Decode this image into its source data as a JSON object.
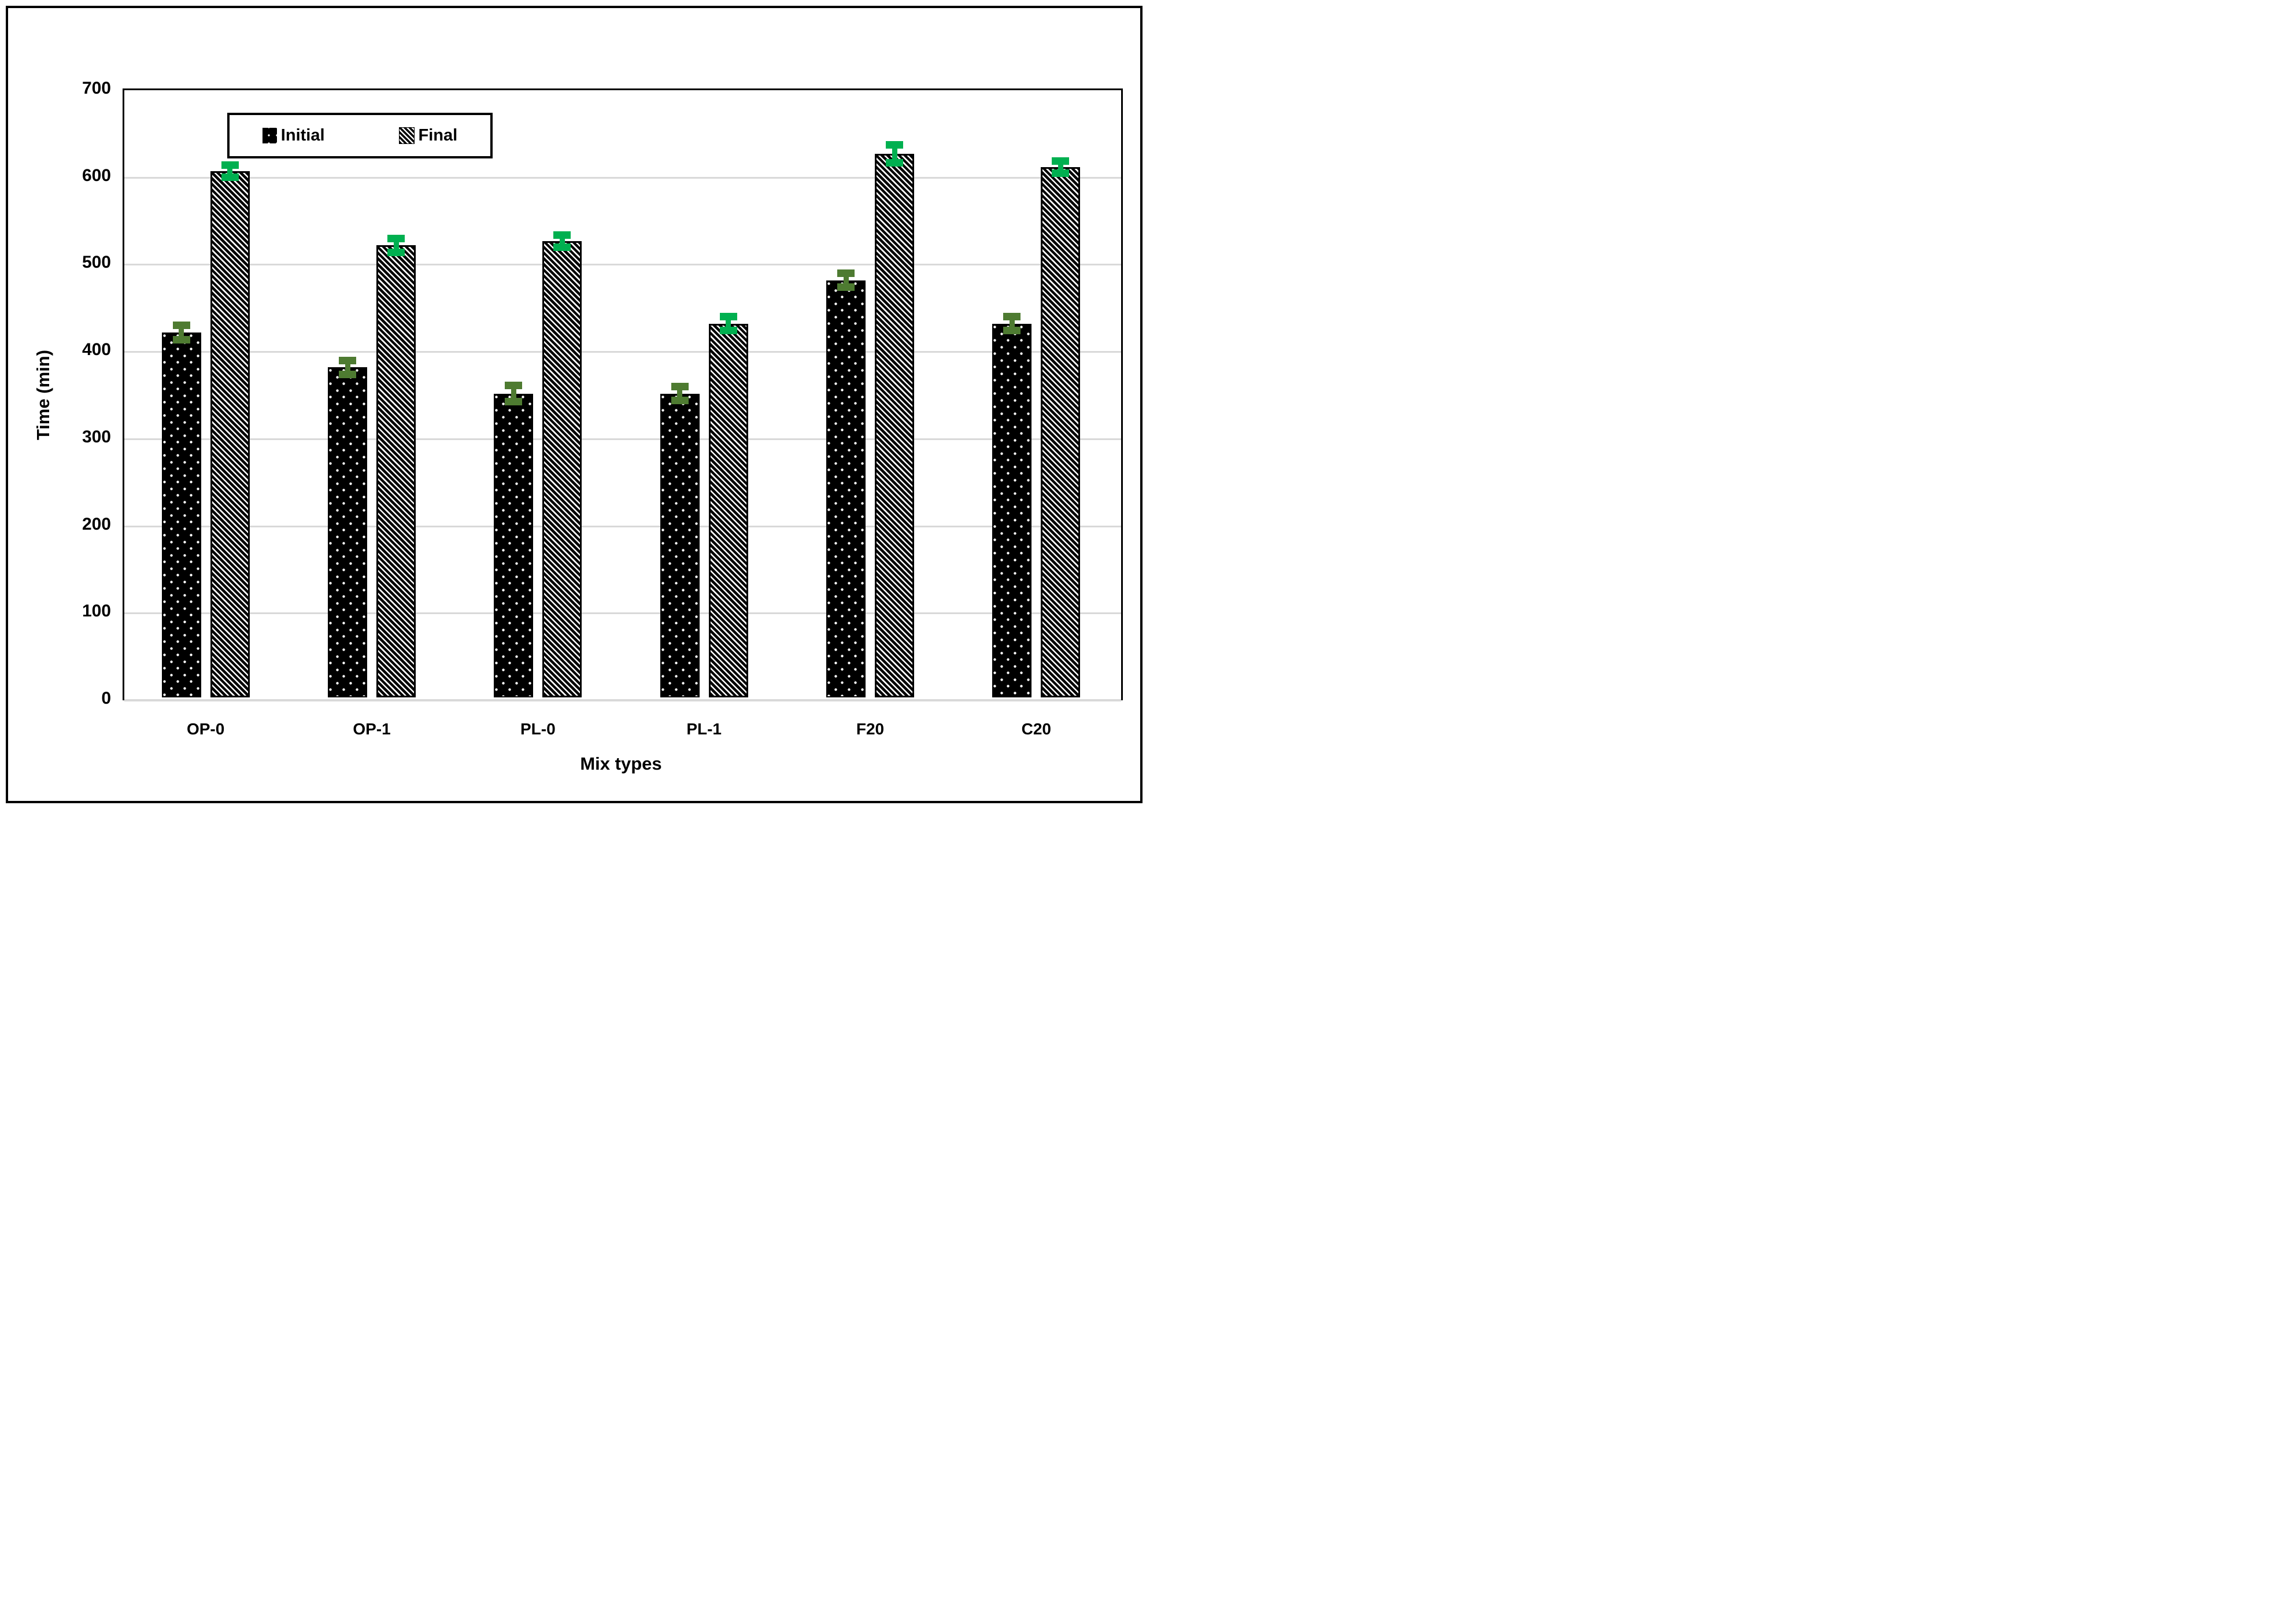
{
  "figure": {
    "background_color": "#ffffff",
    "frame_border_color": "#000000",
    "gridline_color": "#d9d9d9",
    "axis_line_color": "#000000"
  },
  "chart_data": {
    "type": "bar",
    "categories": [
      "OP-0",
      "OP-1",
      "PL-0",
      "PL-1",
      "F20",
      "C20"
    ],
    "series": [
      {
        "name": "Initial",
        "values": [
          420,
          380,
          350,
          350,
          480,
          430
        ],
        "errors": [
          8,
          8,
          9,
          8,
          8,
          8
        ],
        "pattern": "black-with-white-dots",
        "error_bar_color": "#4e7b31"
      },
      {
        "name": "Final",
        "values": [
          605,
          520,
          525,
          430,
          625,
          610
        ],
        "errors": [
          7,
          8,
          7,
          8,
          10,
          7
        ],
        "pattern": "black-diagonal-stripes",
        "error_bar_color": "#00b050"
      }
    ],
    "title": "",
    "xlabel": "Mix types",
    "ylabel": "Time (min)",
    "ylim": [
      0,
      700
    ],
    "ytick_step": 100,
    "yticks": [
      "0",
      "100",
      "200",
      "300",
      "400",
      "500",
      "600",
      "700"
    ],
    "grid": true,
    "legend_position": "top-center-inside"
  }
}
